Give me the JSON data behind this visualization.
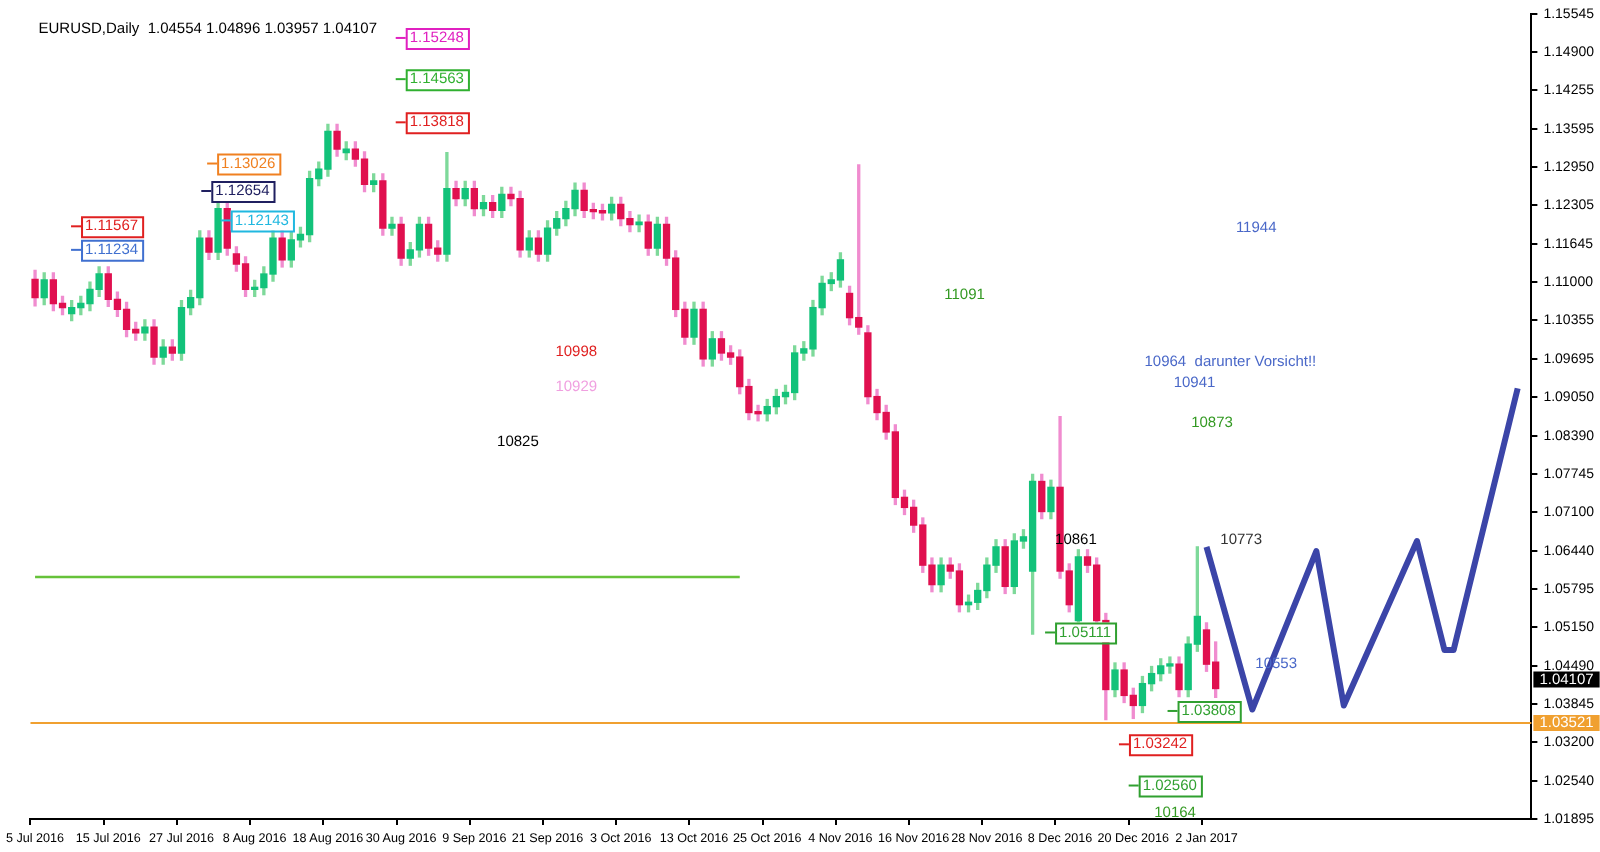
{
  "chart_data": {
    "type": "candlestick",
    "title": "EURUSD,Daily  1.04554 1.04896 1.03957 1.04107",
    "categories": [
      "5 Jul 2016",
      null,
      null,
      null,
      null,
      null,
      null,
      null,
      "15 Jul 2016",
      null,
      null,
      null,
      null,
      null,
      null,
      null,
      "27 Jul 2016",
      null,
      null,
      null,
      null,
      null,
      null,
      null,
      "8 Aug 2016",
      null,
      null,
      null,
      null,
      null,
      null,
      null,
      "18 Aug 2016",
      null,
      null,
      null,
      null,
      null,
      null,
      null,
      "30 Aug 2016",
      null,
      null,
      null,
      null,
      null,
      null,
      null,
      "9 Sep 2016",
      null,
      null,
      null,
      null,
      null,
      null,
      null,
      "21 Sep 2016",
      null,
      null,
      null,
      null,
      null,
      null,
      null,
      "3 Oct 2016",
      null,
      null,
      null,
      null,
      null,
      null,
      null,
      "13 Oct 2016",
      null,
      null,
      null,
      null,
      null,
      null,
      null,
      "25 Oct 2016",
      null,
      null,
      null,
      null,
      null,
      null,
      null,
      "4 Nov 2016",
      null,
      null,
      null,
      null,
      null,
      null,
      null,
      "16 Nov 2016",
      null,
      null,
      null,
      null,
      null,
      null,
      null,
      "28 Nov 2016",
      null,
      null,
      null,
      null,
      null,
      null,
      null,
      "8 Dec 2016",
      null,
      null,
      null,
      null,
      null,
      null,
      null,
      "20 Dec 2016",
      null,
      null,
      null,
      null,
      null,
      null,
      null,
      "2 Jan 2017",
      null,
      null,
      null,
      null,
      null,
      null,
      null,
      null,
      null,
      null,
      null,
      null,
      null,
      null,
      null,
      null,
      null,
      null,
      null,
      null,
      null,
      null,
      null,
      null,
      null,
      null,
      null,
      null,
      null,
      null,
      null,
      null,
      null,
      null,
      null
    ],
    "ohlc": [
      [
        1.1105,
        1.112,
        1.106,
        1.1074
      ],
      [
        1.1074,
        1.1116,
        1.1062,
        1.1104
      ],
      [
        1.1104,
        1.1116,
        1.1052,
        1.1064
      ],
      [
        1.1064,
        1.1076,
        1.1045,
        1.1057
      ],
      [
        1.1047,
        1.1069,
        1.1035,
        1.1057
      ],
      [
        1.1057,
        1.1076,
        1.1045,
        1.1064
      ],
      [
        1.1064,
        1.11,
        1.1052,
        1.1088
      ],
      [
        1.1088,
        1.1126,
        1.1076,
        1.1114
      ],
      [
        1.1114,
        1.1126,
        1.1059,
        1.1071
      ],
      [
        1.1071,
        1.1083,
        1.1042,
        1.1054
      ],
      [
        1.1054,
        1.1066,
        1.1008,
        1.102
      ],
      [
        1.102,
        1.1032,
        1.1002,
        1.1014
      ],
      [
        1.1014,
        1.1036,
        1.1002,
        1.1024
      ],
      [
        1.1024,
        1.1036,
        1.0961,
        1.0973
      ],
      [
        1.0973,
        1.1002,
        1.0961,
        1.099
      ],
      [
        1.099,
        1.1002,
        1.0968,
        1.098
      ],
      [
        1.098,
        1.1069,
        1.0968,
        1.1057
      ],
      [
        1.1057,
        1.1086,
        1.1045,
        1.1074
      ],
      [
        1.1074,
        1.1187,
        1.1062,
        1.1175
      ],
      [
        1.1175,
        1.1187,
        1.1139,
        1.1151
      ],
      [
        1.1151,
        1.1237,
        1.1139,
        1.1225
      ],
      [
        1.1225,
        1.1237,
        1.1146,
        1.1158
      ],
      [
        1.1148,
        1.116,
        1.1119,
        1.1131
      ],
      [
        1.1131,
        1.1143,
        1.1076,
        1.1088
      ],
      [
        1.1088,
        1.1103,
        1.1076,
        1.1091
      ],
      [
        1.1091,
        1.1126,
        1.1079,
        1.1114
      ],
      [
        1.1114,
        1.1187,
        1.1102,
        1.1175
      ],
      [
        1.1175,
        1.1187,
        1.1126,
        1.1138
      ],
      [
        1.1138,
        1.1184,
        1.1126,
        1.1172
      ],
      [
        1.1172,
        1.1193,
        1.116,
        1.1181
      ],
      [
        1.1181,
        1.1288,
        1.1169,
        1.1276
      ],
      [
        1.1276,
        1.1304,
        1.1264,
        1.1292
      ],
      [
        1.1292,
        1.1368,
        1.128,
        1.1356
      ],
      [
        1.1356,
        1.1368,
        1.1314,
        1.1326
      ],
      [
        1.132,
        1.1338,
        1.1308,
        1.1326
      ],
      [
        1.1326,
        1.1338,
        1.1297,
        1.1309
      ],
      [
        1.1309,
        1.1321,
        1.1254,
        1.1266
      ],
      [
        1.1266,
        1.1284,
        1.1254,
        1.1272
      ],
      [
        1.1272,
        1.1284,
        1.118,
        1.1192
      ],
      [
        1.1192,
        1.121,
        1.118,
        1.1198
      ],
      [
        1.1198,
        1.121,
        1.1129,
        1.1141
      ],
      [
        1.1141,
        1.1167,
        1.1129,
        1.1155
      ],
      [
        1.1155,
        1.121,
        1.1143,
        1.1198
      ],
      [
        1.1198,
        1.121,
        1.1146,
        1.1158
      ],
      [
        1.1158,
        1.117,
        1.1136,
        1.1148
      ],
      [
        1.1148,
        1.132,
        1.1136,
        1.1259
      ],
      [
        1.1259,
        1.1271,
        1.123,
        1.1242
      ],
      [
        1.1242,
        1.1271,
        1.123,
        1.1259
      ],
      [
        1.1259,
        1.1271,
        1.1213,
        1.1225
      ],
      [
        1.1225,
        1.1247,
        1.1213,
        1.1235
      ],
      [
        1.1235,
        1.1247,
        1.121,
        1.1222
      ],
      [
        1.1222,
        1.1261,
        1.121,
        1.1249
      ],
      [
        1.1249,
        1.1261,
        1.123,
        1.1242
      ],
      [
        1.1242,
        1.1254,
        1.1143,
        1.1155
      ],
      [
        1.1155,
        1.1187,
        1.1143,
        1.1175
      ],
      [
        1.1175,
        1.1187,
        1.1136,
        1.1148
      ],
      [
        1.1148,
        1.1204,
        1.1136,
        1.1192
      ],
      [
        1.1192,
        1.122,
        1.118,
        1.1208
      ],
      [
        1.1208,
        1.1237,
        1.1196,
        1.1225
      ],
      [
        1.1225,
        1.1268,
        1.1213,
        1.1256
      ],
      [
        1.1256,
        1.1268,
        1.121,
        1.1222
      ],
      [
        1.1222,
        1.1234,
        1.1208,
        1.122
      ],
      [
        1.122,
        1.1232,
        1.1206,
        1.1218
      ],
      [
        1.1218,
        1.1244,
        1.1206,
        1.1232
      ],
      [
        1.1232,
        1.1244,
        1.1196,
        1.1208
      ],
      [
        1.1208,
        1.122,
        1.1186,
        1.1198
      ],
      [
        1.1198,
        1.1214,
        1.1186,
        1.1202
      ],
      [
        1.1202,
        1.1214,
        1.1146,
        1.1158
      ],
      [
        1.1158,
        1.121,
        1.1146,
        1.1198
      ],
      [
        1.1198,
        1.121,
        1.1129,
        1.1141
      ],
      [
        1.1141,
        1.1153,
        1.1042,
        1.1054
      ],
      [
        1.1054,
        1.1066,
        1.0995,
        1.1007
      ],
      [
        1.1007,
        1.1066,
        1.0995,
        1.1054
      ],
      [
        1.1054,
        1.1066,
        1.0958,
        1.097
      ],
      [
        1.097,
        1.1016,
        1.0958,
        1.1004
      ],
      [
        1.1004,
        1.1016,
        1.0968,
        1.098
      ],
      [
        1.098,
        1.0992,
        1.0961,
        1.0973
      ],
      [
        1.0973,
        1.0985,
        1.0911,
        1.0923
      ],
      [
        1.0923,
        1.0935,
        1.0867,
        1.0879
      ],
      [
        1.0879,
        1.0891,
        1.0865,
        1.0877
      ],
      [
        1.0877,
        1.0901,
        1.0865,
        1.0889
      ],
      [
        1.0889,
        1.0918,
        1.0877,
        1.0906
      ],
      [
        1.0906,
        1.0925,
        1.0894,
        1.0913
      ],
      [
        1.0913,
        1.0992,
        1.0901,
        1.098
      ],
      [
        1.098,
        1.0999,
        1.0968,
        1.0987
      ],
      [
        1.0987,
        1.1069,
        1.0975,
        1.1057
      ],
      [
        1.1057,
        1.111,
        1.1045,
        1.1098
      ],
      [
        1.1098,
        1.1116,
        1.1086,
        1.1104
      ],
      [
        1.1104,
        1.115,
        1.1092,
        1.1138
      ],
      [
        1.1081,
        1.1093,
        1.1028,
        1.104
      ],
      [
        1.104,
        1.1299,
        1.1012,
        1.1024
      ],
      [
        1.1014,
        1.1026,
        1.0894,
        1.0906
      ],
      [
        1.0906,
        1.0918,
        1.0867,
        1.0879
      ],
      [
        1.0879,
        1.0891,
        1.0834,
        1.0846
      ],
      [
        1.0846,
        1.0858,
        1.0723,
        1.0735
      ],
      [
        1.0735,
        1.0747,
        1.0706,
        1.0718
      ],
      [
        1.0718,
        1.073,
        1.0676,
        1.0688
      ],
      [
        1.0688,
        1.07,
        1.0608,
        1.062
      ],
      [
        1.062,
        1.0632,
        1.0575,
        1.0587
      ],
      [
        1.0587,
        1.0632,
        1.0575,
        1.062
      ],
      [
        1.062,
        1.0632,
        1.0598,
        1.061
      ],
      [
        1.061,
        1.0622,
        1.0541,
        1.0553
      ],
      [
        1.0553,
        1.0569,
        1.0541,
        1.0557
      ],
      [
        1.0557,
        1.0589,
        1.0545,
        1.0577
      ],
      [
        1.0577,
        1.0632,
        1.0565,
        1.062
      ],
      [
        1.062,
        1.0663,
        1.0608,
        1.0651
      ],
      [
        1.0651,
        1.0663,
        1.0572,
        1.0584
      ],
      [
        1.0584,
        1.0673,
        1.0572,
        1.0661
      ],
      [
        1.0661,
        1.068,
        1.0649,
        1.0668
      ],
      [
        1.061,
        1.0774,
        1.0503,
        1.0762
      ],
      [
        1.0762,
        1.0774,
        1.0699,
        1.0711
      ],
      [
        1.0711,
        1.0764,
        1.0699,
        1.0752
      ],
      [
        1.0752,
        1.0872,
        1.0598,
        1.061
      ],
      [
        1.061,
        1.0622,
        1.0541,
        1.0553
      ],
      [
        1.0526,
        1.0646,
        1.0514,
        1.0634
      ],
      [
        1.0634,
        1.0646,
        1.0608,
        1.062
      ],
      [
        1.062,
        1.0632,
        1.0514,
        1.0526
      ],
      [
        1.0526,
        1.0538,
        1.0358,
        1.0409
      ],
      [
        1.0409,
        1.0454,
        1.0397,
        1.0442
      ],
      [
        1.0442,
        1.0454,
        1.0387,
        1.0399
      ],
      [
        1.0399,
        1.0411,
        1.036,
        1.0382
      ],
      [
        1.0382,
        1.0431,
        1.037,
        1.0419
      ],
      [
        1.0419,
        1.0448,
        1.0407,
        1.0436
      ],
      [
        1.0436,
        1.0461,
        1.0424,
        1.0449
      ],
      [
        1.0449,
        1.0464,
        1.0437,
        1.0452
      ],
      [
        1.0452,
        1.0464,
        1.0397,
        1.0409
      ],
      [
        1.0409,
        1.0498,
        1.0397,
        1.0486
      ],
      [
        1.0486,
        1.0651,
        1.0474,
        1.0533
      ],
      [
        1.051,
        1.0522,
        1.044,
        1.0452
      ],
      [
        1.04554,
        1.04896,
        1.03957,
        1.04107
      ],
      null,
      null,
      null,
      null,
      null,
      null,
      null,
      null,
      null,
      null,
      null,
      null,
      null,
      null,
      null,
      null,
      null,
      null,
      null,
      null,
      null,
      null,
      null,
      null,
      null,
      null,
      null,
      null,
      null,
      null,
      null,
      null,
      null,
      null
    ],
    "series": [
      {
        "type": "line",
        "color": "#3b45a8",
        "values": [
          null,
          null,
          null,
          null,
          null,
          null,
          null,
          null,
          null,
          null,
          null,
          null,
          null,
          null,
          null,
          null,
          null,
          null,
          null,
          null,
          null,
          null,
          null,
          null,
          null,
          null,
          null,
          null,
          null,
          null,
          null,
          null,
          null,
          null,
          null,
          null,
          null,
          null,
          null,
          null,
          null,
          null,
          null,
          null,
          null,
          null,
          null,
          null,
          null,
          null,
          null,
          null,
          null,
          null,
          null,
          null,
          null,
          null,
          null,
          null,
          null,
          null,
          null,
          null,
          null,
          null,
          null,
          null,
          null,
          null,
          null,
          null,
          null,
          null,
          null,
          null,
          null,
          null,
          null,
          null,
          null,
          null,
          null,
          null,
          null,
          null,
          null,
          null,
          null,
          null,
          null,
          null,
          null,
          null,
          null,
          null,
          null,
          null,
          null,
          null,
          null,
          null,
          null,
          null,
          null,
          null,
          null,
          null,
          null,
          null,
          null,
          null,
          null,
          null,
          null,
          null,
          null,
          null,
          null,
          null,
          null,
          null,
          null,
          null,
          null,
          null,
          null,
          null,
          1.0651,
          null,
          null,
          null,
          null,
          1.0375,
          null,
          null,
          null,
          null,
          null,
          null,
          1.0644,
          null,
          null,
          1.0382,
          null,
          null,
          null,
          null,
          null,
          null,
          null,
          1.0661,
          null,
          null,
          1.0476,
          1.0476,
          null,
          null,
          null,
          null,
          null,
          null,
          1.092,
          null
        ]
      },
      {
        "type": "line",
        "color": "#66c23a",
        "values": [
          1.06,
          null,
          null,
          null,
          null,
          null,
          null,
          null,
          null,
          null,
          null,
          null,
          null,
          null,
          null,
          null,
          null,
          null,
          null,
          null,
          null,
          null,
          null,
          null,
          null,
          null,
          null,
          null,
          null,
          null,
          null,
          null,
          null,
          null,
          null,
          null,
          null,
          null,
          null,
          null,
          null,
          null,
          null,
          null,
          null,
          null,
          null,
          null,
          null,
          null,
          null,
          null,
          null,
          null,
          null,
          null,
          null,
          null,
          null,
          null,
          null,
          null,
          null,
          null,
          null,
          null,
          null,
          null,
          null,
          null,
          null,
          null,
          null,
          null,
          null,
          null,
          null,
          1.06,
          null,
          null,
          null,
          null,
          null,
          null,
          null,
          null,
          null,
          null,
          null,
          null,
          null,
          null,
          null,
          null,
          null,
          null,
          null,
          null,
          null,
          null,
          null,
          null,
          null,
          null,
          null,
          null,
          null,
          null,
          null,
          null,
          null,
          null,
          null,
          null,
          null,
          null,
          null,
          null,
          null,
          null,
          null,
          null,
          null,
          null,
          null,
          null,
          null,
          null,
          null,
          null,
          null,
          null,
          null,
          null,
          null,
          null,
          null,
          null,
          null,
          null,
          null,
          null,
          null,
          null,
          null,
          null,
          null,
          null,
          null,
          null,
          null,
          null,
          null,
          null,
          null,
          null,
          null,
          null,
          null,
          null,
          null,
          null,
          null,
          null
        ]
      }
    ],
    "ylim": [
      1.01895,
      1.15545
    ],
    "yticks": [
      1.15545,
      {
        "value": 1.149,
        "label": "1.14900"
      },
      1.14255,
      1.13595,
      {
        "value": 1.1295,
        "label": "1.12950"
      },
      1.12305,
      1.11645,
      {
        "value": 1.11,
        "label": "1.11000"
      },
      1.10355,
      1.09695,
      {
        "value": 1.0905,
        "label": "1.09050"
      },
      {
        "value": 1.0839,
        "label": "1.08390"
      },
      1.07745,
      {
        "value": 1.071,
        "label": "1.07100"
      },
      {
        "value": 1.0644,
        "label": "1.06440"
      },
      1.05795,
      {
        "value": 1.0515,
        "label": "1.05150"
      },
      {
        "value": 1.0449,
        "label": "1.04490"
      },
      1.03845,
      {
        "value": 1.032,
        "label": "1.03200"
      },
      {
        "value": 1.0254,
        "label": "1.02540"
      },
      1.01895
    ],
    "ref_lines": [
      {
        "axis": "y",
        "value": 1.03521,
        "label": "1.03521",
        "color": "#f0a030"
      }
    ],
    "marker": "none",
    "line_style": "solid",
    "legend": false,
    "annotations": [
      "10998",
      "10929",
      "10825",
      "11091",
      "11944",
      "10964  darunter Vorsicht!!",
      "10941",
      "10873",
      "10861",
      "10773",
      "10553",
      "10164",
      "1.15248",
      "1.14563",
      "1.13818",
      "1.13026",
      "1.12654",
      "1.12143",
      "1.11567",
      "1.11234",
      "1.05111",
      "1.03808",
      "1.03242",
      "1.02560",
      "1.04107"
    ]
  }
}
